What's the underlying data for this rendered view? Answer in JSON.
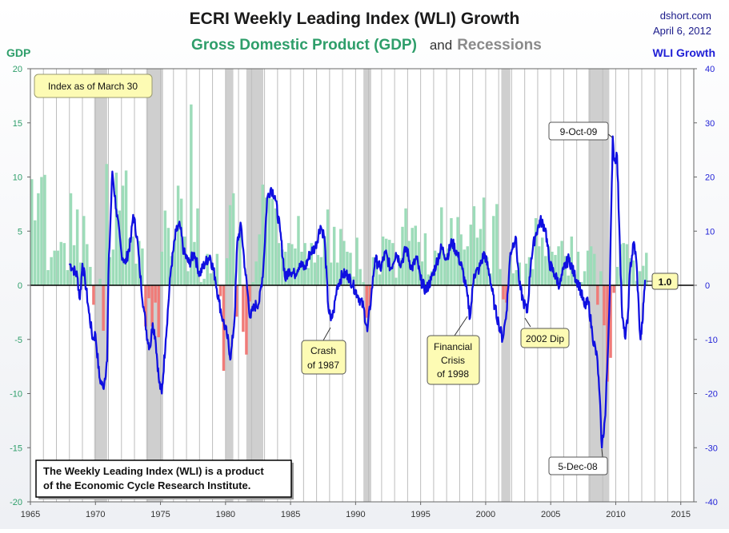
{
  "header": {
    "title": "ECRI Weekly Leading Index (WLI) Growth",
    "subtitle_gdp": "Gross Domestic Product (GDP)",
    "subtitle_and": "and",
    "subtitle_recessions": "Recessions",
    "source_site": "dshort.com",
    "source_date": "April 6, 2012"
  },
  "colors": {
    "gdp_positive": "#9ddcb9",
    "gdp_negative": "#f07b78",
    "wli_line": "#1010e0",
    "recession": "#cfcfcf",
    "zero_line": "#000000",
    "callout_fill": "#fdfbb4"
  },
  "chart_data": {
    "type": "bar+line",
    "title": "ECRI Weekly Leading Index (WLI) Growth",
    "x_range": [
      1965,
      2016
    ],
    "x_ticks": [
      1965,
      1970,
      1975,
      1980,
      1985,
      1990,
      1995,
      2000,
      2005,
      2010,
      2015
    ],
    "y_left": {
      "label": "GDP",
      "range": [
        -20,
        20
      ],
      "ticks": [
        20,
        15,
        10,
        5,
        0,
        -5,
        -10,
        -15,
        -20
      ]
    },
    "y_right": {
      "label": "WLI Growth",
      "range": [
        -40,
        40
      ],
      "ticks": [
        40,
        30,
        20,
        10,
        0,
        -10,
        -20,
        -30,
        -40
      ]
    },
    "recessions": [
      [
        1969.9,
        1970.9
      ],
      [
        1973.9,
        1975.2
      ],
      [
        1980.0,
        1980.6
      ],
      [
        1981.6,
        1982.9
      ],
      [
        1990.6,
        1991.2
      ],
      [
        2001.2,
        2001.9
      ],
      [
        2007.9,
        2009.5
      ]
    ],
    "gdp_series": {
      "name": "Gross Domestic Product (GDP)",
      "start": 1965.0,
      "step": 0.25,
      "values": [
        9.8,
        6.0,
        8.5,
        10.0,
        10.2,
        1.4,
        2.6,
        3.2,
        3.2,
        4.0,
        3.9,
        1.4,
        8.5,
        3.7,
        7.0,
        2.1,
        6.4,
        3.8,
        1.7,
        -1.8,
        0.1,
        0.6,
        -4.2,
        11.2,
        2.6,
        3.3,
        10.4,
        6.9,
        9.2,
        10.6,
        4.3,
        4.5,
        2.0,
        4.1,
        3.4,
        -3.8,
        -1.2,
        -3.8,
        -1.6,
        -4.8,
        3.1,
        6.9,
        5.3,
        2.7,
        4.3,
        9.2,
        8.0,
        4.5,
        1.3,
        16.7,
        4.0,
        7.1,
        0.3,
        0.6,
        2.9,
        1.1,
        1.3,
        2.9,
        -1.0,
        -7.9,
        2.5,
        7.4,
        8.5,
        -2.9,
        4.9,
        -4.3,
        -6.4,
        -1.5,
        0.3,
        2.2,
        4.7,
        9.3,
        8.1,
        8.5,
        8.0,
        7.1,
        3.9,
        3.3,
        3.1,
        3.9,
        3.8,
        3.4,
        6.4,
        3.1,
        3.9,
        1.6,
        3.9,
        2.1,
        2.8,
        2.6,
        4.5,
        7.0,
        2.1,
        5.4,
        2.1,
        5.2,
        4.1,
        3.1,
        3.0,
        0.8,
        4.4,
        1.5,
        0.3,
        -3.0,
        -2.0,
        2.6,
        1.9,
        1.0,
        4.5,
        4.3,
        4.2,
        3.9,
        0.7,
        2.5,
        5.4,
        7.1,
        4.1,
        5.3,
        5.5,
        4.0,
        2.2,
        4.8,
        1.0,
        1.3,
        3.2,
        3.0,
        7.2,
        2.9,
        3.4,
        6.2,
        3.1,
        6.3,
        4.7,
        3.3,
        3.6,
        5.6,
        7.3,
        4.4,
        5.2,
        8.1,
        2.6,
        1.1,
        6.4,
        7.5,
        1.5,
        -1.3,
        -1.6,
        2.7,
        1.1,
        1.4,
        2.1,
        0.1,
        2.0,
        2.6,
        1.5,
        6.2,
        3.6,
        4.4,
        2.7,
        3.6,
        3.1,
        2.8,
        3.6,
        4.1,
        2.7,
        0.9,
        4.5,
        1.0,
        3.1,
        0.3,
        1.3,
        3.2,
        3.6,
        2.9,
        -1.8,
        1.3,
        -3.7,
        -8.9,
        -6.7,
        -0.7,
        1.7,
        3.8,
        3.9,
        3.8,
        2.5,
        2.3,
        0.4,
        1.3,
        1.8,
        3.0
      ]
    },
    "wli_series": {
      "name": "WLI Growth",
      "points": [
        [
          1968.0,
          4.0
        ],
        [
          1968.3,
          3.0
        ],
        [
          1968.6,
          1.8
        ],
        [
          1968.8,
          -2.6
        ],
        [
          1969.0,
          4.0
        ],
        [
          1969.2,
          1.0
        ],
        [
          1969.5,
          -5.0
        ],
        [
          1969.8,
          -10.0
        ],
        [
          1970.0,
          -9.0
        ],
        [
          1970.3,
          -17.0
        ],
        [
          1970.6,
          -19.0
        ],
        [
          1970.9,
          -14.0
        ],
        [
          1971.0,
          2.0
        ],
        [
          1971.3,
          21.0
        ],
        [
          1971.6,
          14.0
        ],
        [
          1972.0,
          6.0
        ],
        [
          1972.3,
          4.0
        ],
        [
          1972.7,
          8.0
        ],
        [
          1972.9,
          13.0
        ],
        [
          1973.2,
          9.0
        ],
        [
          1973.4,
          3.0
        ],
        [
          1973.7,
          -4.0
        ],
        [
          1974.0,
          -10.0
        ],
        [
          1974.2,
          -11.5
        ],
        [
          1974.4,
          -7.0
        ],
        [
          1974.6,
          -9.5
        ],
        [
          1974.9,
          -18.0
        ],
        [
          1975.1,
          -20.0
        ],
        [
          1975.4,
          -10.0
        ],
        [
          1975.8,
          3.0
        ],
        [
          1976.2,
          10.0
        ],
        [
          1976.5,
          11.0
        ],
        [
          1976.8,
          6.0
        ],
        [
          1977.2,
          4.0
        ],
        [
          1977.6,
          6.0
        ],
        [
          1978.0,
          2.0
        ],
        [
          1978.4,
          4.0
        ],
        [
          1978.8,
          5.5
        ],
        [
          1979.2,
          1.5
        ],
        [
          1979.5,
          -3.0
        ],
        [
          1979.8,
          -6.5
        ],
        [
          1980.1,
          -9.0
        ],
        [
          1980.4,
          -13.5
        ],
        [
          1980.7,
          -6.0
        ],
        [
          1980.9,
          8.0
        ],
        [
          1981.2,
          11.0
        ],
        [
          1981.5,
          3.0
        ],
        [
          1981.9,
          -6.0
        ],
        [
          1982.2,
          -4.0
        ],
        [
          1982.6,
          -3.0
        ],
        [
          1982.9,
          3.0
        ],
        [
          1983.2,
          16.0
        ],
        [
          1983.5,
          18.0
        ],
        [
          1983.8,
          16.5
        ],
        [
          1984.2,
          10.0
        ],
        [
          1984.6,
          1.0
        ],
        [
          1984.9,
          3.0
        ],
        [
          1985.3,
          2.0
        ],
        [
          1985.7,
          4.0
        ],
        [
          1986.1,
          3.0
        ],
        [
          1986.5,
          6.0
        ],
        [
          1986.9,
          7.0
        ],
        [
          1987.3,
          11.0
        ],
        [
          1987.6,
          9.0
        ],
        [
          1987.9,
          -4.0
        ],
        [
          1988.1,
          -6.5
        ],
        [
          1988.3,
          -5.0
        ],
        [
          1988.6,
          0.0
        ],
        [
          1989.0,
          2.0
        ],
        [
          1989.4,
          2.0
        ],
        [
          1989.8,
          0.0
        ],
        [
          1990.2,
          -2.0
        ],
        [
          1990.6,
          -4.0
        ],
        [
          1990.9,
          -8.5
        ],
        [
          1991.2,
          -2.0
        ],
        [
          1991.5,
          5.0
        ],
        [
          1991.9,
          3.0
        ],
        [
          1992.3,
          6.0
        ],
        [
          1992.7,
          3.0
        ],
        [
          1993.1,
          6.0
        ],
        [
          1993.5,
          4.0
        ],
        [
          1993.9,
          7.0
        ],
        [
          1994.3,
          3.0
        ],
        [
          1994.7,
          5.0
        ],
        [
          1995.0,
          1.0
        ],
        [
          1995.4,
          -1.0
        ],
        [
          1995.8,
          1.0
        ],
        [
          1996.2,
          4.0
        ],
        [
          1996.6,
          7.0
        ],
        [
          1997.0,
          5.0
        ],
        [
          1997.4,
          8.0
        ],
        [
          1997.8,
          6.0
        ],
        [
          1998.2,
          3.0
        ],
        [
          1998.6,
          -2.0
        ],
        [
          1998.8,
          -6.0
        ],
        [
          1999.1,
          2.0
        ],
        [
          1999.5,
          3.0
        ],
        [
          1999.9,
          6.0
        ],
        [
          2000.3,
          2.0
        ],
        [
          2000.7,
          -4.0
        ],
        [
          2001.0,
          -7.0
        ],
        [
          2001.3,
          -10.0
        ],
        [
          2001.6,
          -5.0
        ],
        [
          2001.9,
          6.0
        ],
        [
          2002.3,
          9.0
        ],
        [
          2002.6,
          0.0
        ],
        [
          2002.9,
          -3.0
        ],
        [
          2003.2,
          -5.0
        ],
        [
          2003.5,
          5.0
        ],
        [
          2003.8,
          9.0
        ],
        [
          2004.2,
          12.0
        ],
        [
          2004.6,
          10.5
        ],
        [
          2004.9,
          4.0
        ],
        [
          2005.3,
          2.0
        ],
        [
          2005.7,
          0.0
        ],
        [
          2006.0,
          3.0
        ],
        [
          2006.4,
          5.0
        ],
        [
          2006.8,
          2.0
        ],
        [
          2007.2,
          0.0
        ],
        [
          2007.6,
          -4.0
        ],
        [
          2007.9,
          -3.0
        ],
        [
          2008.2,
          -9.0
        ],
        [
          2008.6,
          -14.0
        ],
        [
          2008.85,
          -25.0
        ],
        [
          2008.93,
          -30.0
        ],
        [
          2009.2,
          -24.0
        ],
        [
          2009.5,
          -5.0
        ],
        [
          2009.77,
          27.5
        ],
        [
          2009.9,
          23.0
        ],
        [
          2010.1,
          24.0
        ],
        [
          2010.3,
          9.0
        ],
        [
          2010.5,
          -6.0
        ],
        [
          2010.7,
          -9.5
        ],
        [
          2010.9,
          -7.0
        ],
        [
          2011.1,
          3.0
        ],
        [
          2011.4,
          8.0
        ],
        [
          2011.6,
          4.0
        ],
        [
          2011.8,
          -6.0
        ],
        [
          2011.9,
          -10.0
        ],
        [
          2012.05,
          -7.0
        ],
        [
          2012.15,
          -3.0
        ],
        [
          2012.26,
          1.0
        ]
      ]
    },
    "annotations": [
      {
        "lines": [
          "9-Oct-09"
        ]
      },
      {
        "lines": [
          "5-Dec-08"
        ]
      },
      {
        "lines": [
          "Crash",
          "of 1987"
        ]
      },
      {
        "lines": [
          "Financial",
          "Crisis",
          "of 1998"
        ]
      },
      {
        "lines": [
          "2002 Dip"
        ]
      },
      {
        "lines": [
          "1.0"
        ]
      }
    ],
    "info_box": "Index as of March 30",
    "note": [
      "The Weekly Leading Index (WLI) is a product",
      "of the Economic Cycle Research Institute."
    ]
  }
}
